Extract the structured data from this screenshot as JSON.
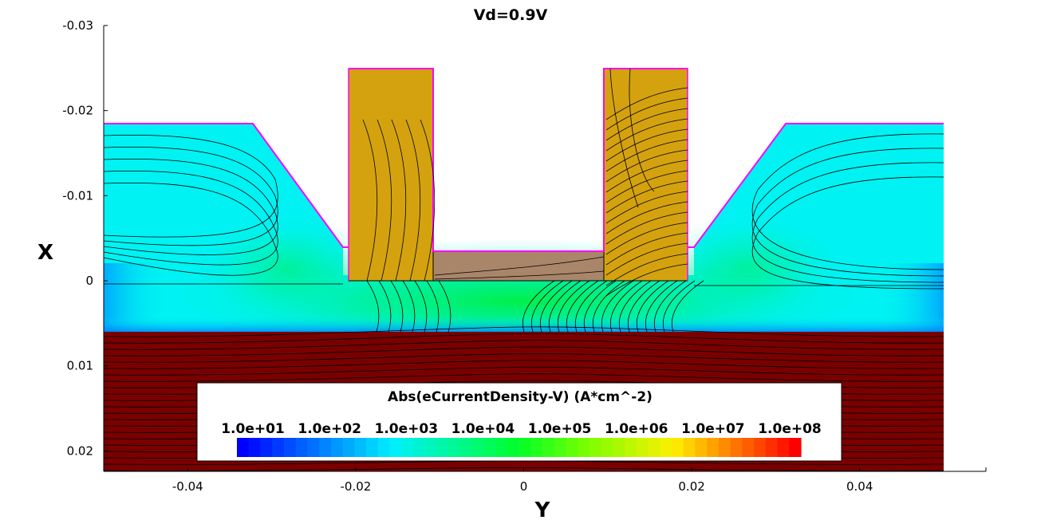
{
  "chart_data": {
    "type": "heatmap",
    "title": "Vd=0.9V",
    "xlabel": "Y",
    "ylabel": "X",
    "xlim": [
      -0.05,
      0.05
    ],
    "ylim": [
      -0.03,
      0.022
    ],
    "y_inverted": true,
    "x_ticks": [
      -0.04,
      -0.02,
      0,
      0.02,
      0.04
    ],
    "x_tick_labels": [
      "-0.04",
      "-0.02",
      "0",
      "0.02",
      "0.04"
    ],
    "y_ticks": [
      -0.03,
      -0.02,
      -0.01,
      0,
      0.01,
      0.02
    ],
    "y_tick_labels": [
      "-0.03",
      "-0.02",
      "-0.01",
      "0",
      "0.01",
      "0.02"
    ],
    "colorbar": {
      "title": "Abs(eCurrentDensity-V) (A*cm^-2)",
      "scale": "log",
      "range": [
        10,
        100000000
      ],
      "tick_values": [
        10.0,
        100.0,
        1000.0,
        10000.0,
        100000.0,
        1000000.0,
        10000000.0,
        100000000.0
      ],
      "tick_labels": [
        "1.0e+01",
        "1.0e+02",
        "1.0e+03",
        "1.0e+04",
        "1.0e+05",
        "1.0e+06",
        "1.0e+07",
        "1.0e+08"
      ],
      "colormap": "rainbow",
      "steps": 48
    },
    "regions": [
      {
        "name": "silicon-epi",
        "color": "#00f2f2",
        "y_range": [
          -0.05,
          0.05
        ],
        "x_range": [
          -0.0185,
          0.006
        ]
      },
      {
        "name": "substrate",
        "color": "#7a0000",
        "y_range": [
          -0.05,
          0.05
        ],
        "x_range": [
          0.006,
          0.022
        ]
      },
      {
        "name": "spacer-left",
        "color": "#d4a20e",
        "y_range": [
          -0.02,
          -0.01
        ],
        "x_range": [
          -0.025,
          0
        ]
      },
      {
        "name": "spacer-right",
        "color": "#d4a20e",
        "y_range": [
          0.01,
          0.02
        ],
        "x_range": [
          -0.025,
          0
        ]
      },
      {
        "name": "gate-oxide",
        "color": "#a9856a",
        "y_range": [
          -0.01,
          0.01
        ],
        "x_range": [
          -0.0035,
          0
        ]
      }
    ],
    "grid": false,
    "legend_placement": "bottom-center"
  }
}
